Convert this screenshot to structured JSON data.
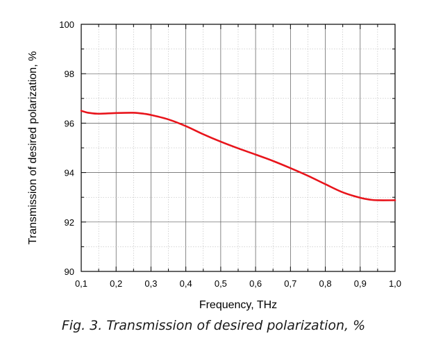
{
  "chart_data": {
    "type": "line",
    "title": "",
    "xlabel": "Frequency, THz",
    "ylabel": "Transmission of desired polarization, %",
    "xlim": [
      0.1,
      1.0
    ],
    "ylim": [
      90,
      100
    ],
    "x_ticks": [
      0.1,
      0.2,
      0.3,
      0.4,
      0.5,
      0.6,
      0.7,
      0.8,
      0.9,
      1.0
    ],
    "x_tick_labels": [
      "0,1",
      "0,2",
      "0,3",
      "0,4",
      "0,5",
      "0,6",
      "0,7",
      "0,8",
      "0,9",
      "1,0"
    ],
    "y_ticks": [
      90,
      92,
      94,
      96,
      98,
      100
    ],
    "y_tick_labels": [
      "90",
      "92",
      "94",
      "96",
      "98",
      "100"
    ],
    "grid": true,
    "series": [
      {
        "color": "#e8141b",
        "x": [
          0.1,
          0.12,
          0.15,
          0.2,
          0.25,
          0.28,
          0.3,
          0.35,
          0.4,
          0.45,
          0.5,
          0.55,
          0.6,
          0.65,
          0.7,
          0.75,
          0.8,
          0.85,
          0.9,
          0.93,
          0.95,
          1.0
        ],
        "y": [
          96.5,
          96.42,
          96.38,
          96.41,
          96.42,
          96.38,
          96.33,
          96.15,
          95.88,
          95.55,
          95.25,
          94.98,
          94.73,
          94.47,
          94.18,
          93.87,
          93.53,
          93.2,
          92.98,
          92.9,
          92.88,
          92.88
        ]
      }
    ]
  },
  "caption": "Fig. 3. Transmission of desired polarization, %"
}
